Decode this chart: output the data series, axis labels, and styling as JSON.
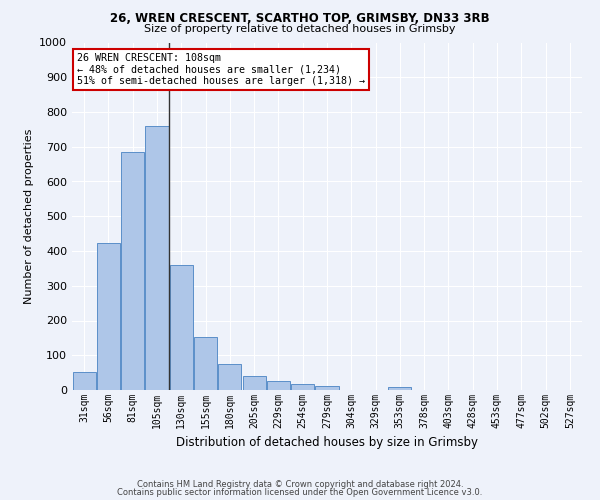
{
  "title1": "26, WREN CRESCENT, SCARTHO TOP, GRIMSBY, DN33 3RB",
  "title2": "Size of property relative to detached houses in Grimsby",
  "xlabel": "Distribution of detached houses by size in Grimsby",
  "ylabel": "Number of detached properties",
  "categories": [
    "31sqm",
    "56sqm",
    "81sqm",
    "105sqm",
    "130sqm",
    "155sqm",
    "180sqm",
    "205sqm",
    "229sqm",
    "254sqm",
    "279sqm",
    "304sqm",
    "329sqm",
    "353sqm",
    "378sqm",
    "403sqm",
    "428sqm",
    "453sqm",
    "477sqm",
    "502sqm",
    "527sqm"
  ],
  "values": [
    52,
    422,
    685,
    760,
    360,
    153,
    75,
    40,
    27,
    18,
    11,
    0,
    0,
    8,
    0,
    0,
    0,
    0,
    0,
    0,
    0
  ],
  "bar_color": "#aec6e8",
  "bar_edge_color": "#5b8fc9",
  "annotation_text_line1": "26 WREN CRESCENT: 108sqm",
  "annotation_text_line2": "← 48% of detached houses are smaller (1,234)",
  "annotation_text_line3": "51% of semi-detached houses are larger (1,318) →",
  "annotation_box_facecolor": "#ffffff",
  "annotation_box_edgecolor": "#cc0000",
  "ylim": [
    0,
    1000
  ],
  "yticks": [
    0,
    100,
    200,
    300,
    400,
    500,
    600,
    700,
    800,
    900,
    1000
  ],
  "footer1": "Contains HM Land Registry data © Crown copyright and database right 2024.",
  "footer2": "Contains public sector information licensed under the Open Government Licence v3.0.",
  "bg_color": "#eef2fa",
  "grid_color": "#ffffff"
}
